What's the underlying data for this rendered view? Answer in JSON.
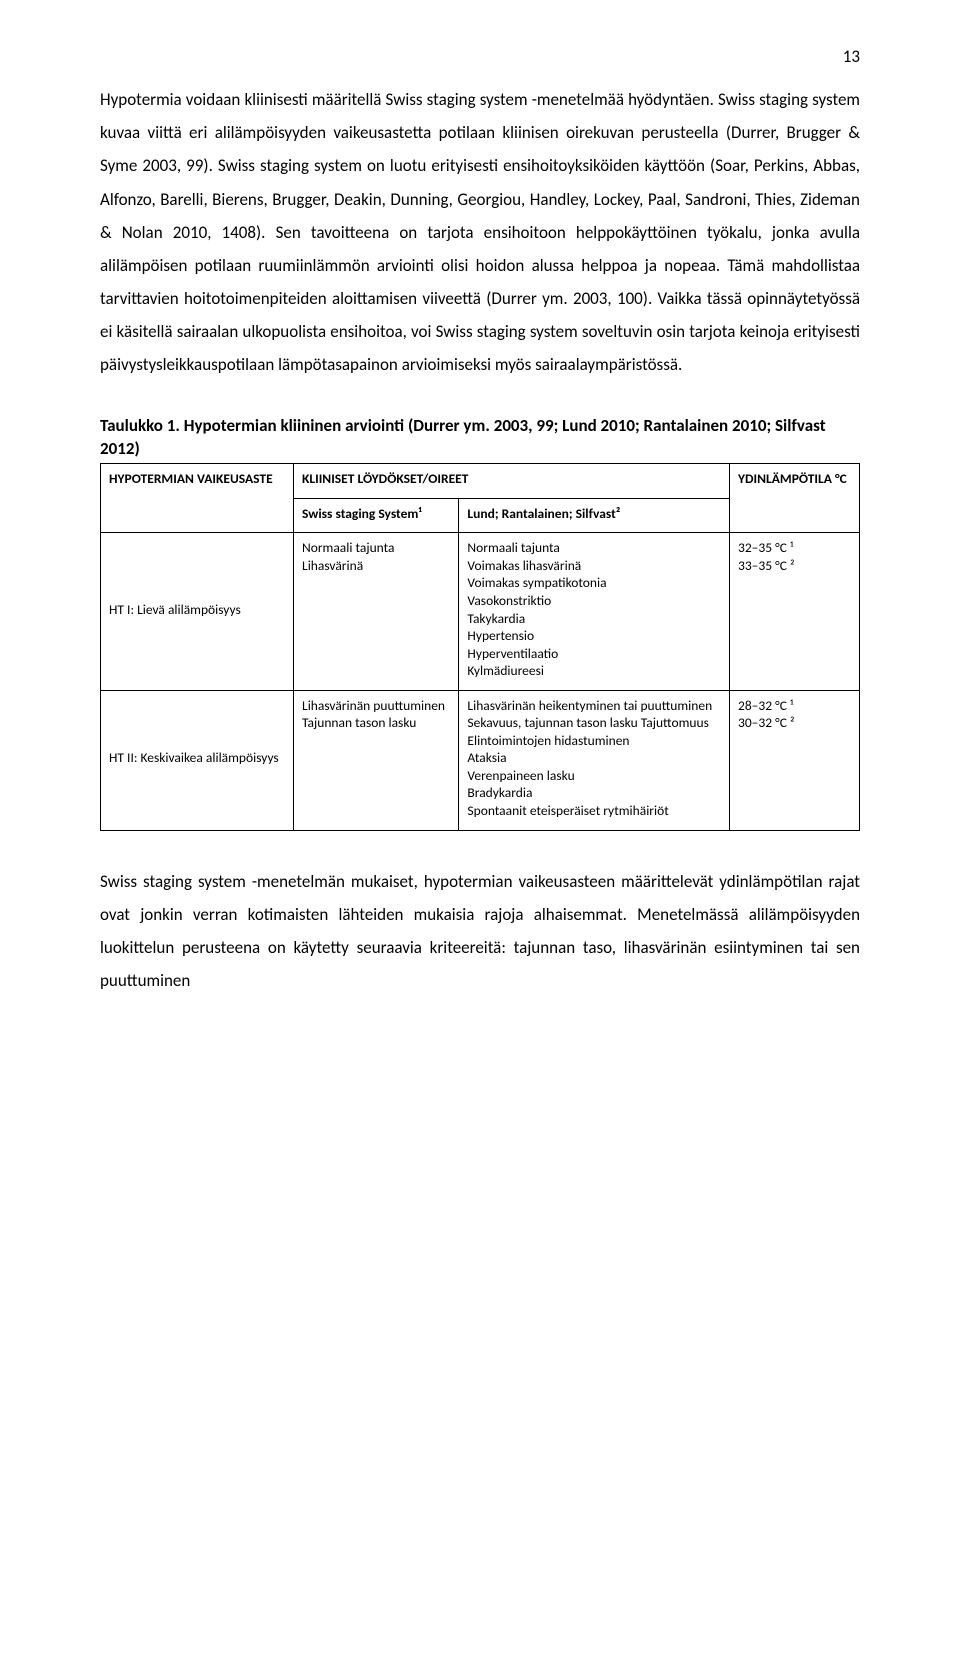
{
  "pageNumber": "13",
  "bodyText": "Hypotermia voidaan kliinisesti määritellä Swiss staging system -menetelmää hyödyntäen. Swiss staging system kuvaa viittä eri alilämpöisyyden vaikeusastetta potilaan kliinisen oirekuvan perusteella (Durrer, Brugger & Syme 2003, 99). Swiss staging system on luotu erityisesti ensihoitoyksiköiden käyttöön (Soar, Perkins, Abbas, Alfonzo, Barelli, Bierens, Brugger, Deakin, Dunning, Georgiou, Handley, Lockey, Paal, Sandroni, Thies, Zideman & Nolan 2010, 1408). Sen tavoitteena on tarjota ensihoitoon helppokäyttöinen työkalu, jonka avulla alilämpöisen potilaan ruumiinlämmön arviointi olisi hoidon alussa helppoa ja nopeaa. Tämä mahdollistaa tarvittavien hoitotoimenpiteiden aloittamisen viiveettä (Durrer ym. 2003, 100). Vaikka tässä opinnäytetyössä ei käsitellä sairaalan ulkopuolista ensihoitoa, voi Swiss staging system soveltuvin osin tarjota keinoja erityisesti päivystysleikkauspotilaan lämpötasapainon arvioimiseksi myös sairaalaympäristössä.",
  "tableCaption": "Taulukko 1. Hypotermian kliininen arviointi (Durrer ym. 2003, 99; Lund 2010; Rantalainen 2010; Silfvast 2012)",
  "table": {
    "head": {
      "col1": "HYPOTERMIAN VAIKEUSASTE",
      "col2span": "KLIINISET LÖYDÖKSET/OIREET",
      "col2a": "Swiss staging System¹",
      "col2b": "Lund; Rantalainen; Silfvast²",
      "col3": "YDINLÄMPÖTILA °C"
    },
    "rows": [
      {
        "c1": "HT I: Lievä alilämpöisyys",
        "c2a": [
          "Normaali tajunta",
          "Lihasvärinä"
        ],
        "c2b": [
          "Normaali tajunta",
          "Voimakas lihasvärinä",
          "Voimakas sympatikotonia",
          "Vasokonstriktio",
          "Takykardia",
          "Hypertensio",
          "Hyperventilaatio",
          "Kylmädiureesi"
        ],
        "c3": [
          "32–35 °C ¹",
          "33–35 °C ²"
        ]
      },
      {
        "c1": "HT II: Keskivaikea alilämpöisyys",
        "c2a": [
          "Lihasvärinän puuttuminen",
          "Tajunnan tason lasku"
        ],
        "c2b": [
          "Lihasvärinän heikentyminen tai puuttuminen",
          "Sekavuus, tajunnan tason lasku Tajuttomuus",
          "Elintoimintojen hidastuminen",
          "Ataksia",
          "Verenpaineen lasku",
          "Bradykardia",
          "Spontaanit eteisperäiset rytmihäiriöt"
        ],
        "c3": [
          "28–32 °C ¹",
          "30–32 °C ²"
        ]
      }
    ]
  },
  "footerText": "Swiss staging system -menetelmän mukaiset, hypotermian vaikeusasteen määrittelevät ydinlämpötilan rajat ovat jonkin verran kotimaisten lähteiden mukaisia rajoja alhaisemmat. Menetelmässä alilämpöisyyden luokittelun perusteena on käytetty seuraavia kriteereitä: tajunnan taso, lihasvärinän esiintyminen tai sen puuttuminen"
}
